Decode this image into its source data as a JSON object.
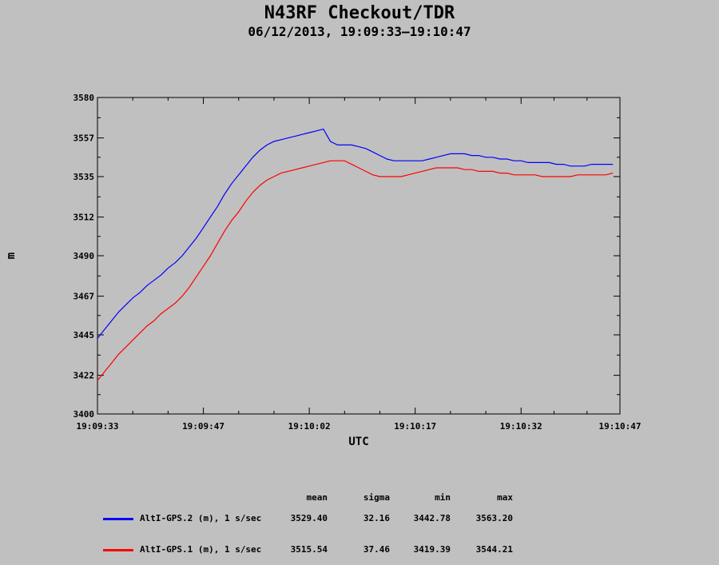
{
  "title": "N43RF Checkout/TDR",
  "subtitle": "06/12/2013, 19:09:33–19:10:47",
  "colors": {
    "background": "#c0c0c0",
    "series1": "#0000ff",
    "series2": "#ff0000"
  },
  "chart_data": {
    "type": "line",
    "title": "N43RF Checkout/TDR",
    "subtitle": "06/12/2013, 19:09:33–19:10:47",
    "xlabel": "UTC",
    "ylabel": "m",
    "x_unit": "seconds after 19:09:33",
    "xlim": [
      0,
      74
    ],
    "ylim": [
      3400,
      3580
    ],
    "x_ticks": [
      0,
      15,
      30,
      45,
      60,
      74
    ],
    "x_tick_labels": [
      "19:09:33",
      "19:09:47",
      "19:10:02",
      "19:10:17",
      "19:10:32",
      "19:10:47"
    ],
    "y_ticks": [
      3400,
      3422,
      3445,
      3467,
      3490,
      3512,
      3535,
      3557,
      3580
    ],
    "grid": false,
    "x": [
      0,
      1,
      2,
      3,
      4,
      5,
      6,
      7,
      8,
      9,
      10,
      11,
      12,
      13,
      14,
      15,
      16,
      17,
      18,
      19,
      20,
      21,
      22,
      23,
      24,
      25,
      26,
      27,
      28,
      29,
      30,
      31,
      32,
      33,
      34,
      35,
      36,
      37,
      38,
      39,
      40,
      41,
      42,
      43,
      44,
      45,
      46,
      47,
      48,
      49,
      50,
      51,
      52,
      53,
      54,
      55,
      56,
      57,
      58,
      59,
      60,
      61,
      62,
      63,
      64,
      65,
      66,
      67,
      68,
      69,
      70,
      71,
      72,
      73
    ],
    "series": [
      {
        "name": "AltI-GPS.2 (m), 1 s/sec",
        "color": "#0000ff",
        "values": [
          3443,
          3448,
          3453,
          3458,
          3462,
          3466,
          3469,
          3473,
          3476,
          3479,
          3483,
          3486,
          3490,
          3495,
          3500,
          3506,
          3512,
          3518,
          3525,
          3531,
          3536,
          3541,
          3546,
          3550,
          3553,
          3555,
          3556,
          3557,
          3558,
          3559,
          3560,
          3561,
          3562,
          3555,
          3553,
          3553,
          3553,
          3552,
          3551,
          3549,
          3547,
          3545,
          3544,
          3544,
          3544,
          3544,
          3544,
          3545,
          3546,
          3547,
          3548,
          3548,
          3548,
          3547,
          3547,
          3546,
          3546,
          3545,
          3545,
          3544,
          3544,
          3543,
          3543,
          3543,
          3543,
          3542,
          3542,
          3541,
          3541,
          3541,
          3542,
          3542,
          3542,
          3542
        ]
      },
      {
        "name": "AltI-GPS.1 (m), 1 s/sec",
        "color": "#ff0000",
        "values": [
          3419,
          3424,
          3429,
          3434,
          3438,
          3442,
          3446,
          3450,
          3453,
          3457,
          3460,
          3463,
          3467,
          3472,
          3478,
          3484,
          3490,
          3497,
          3504,
          3510,
          3515,
          3521,
          3526,
          3530,
          3533,
          3535,
          3537,
          3538,
          3539,
          3540,
          3541,
          3542,
          3543,
          3544,
          3544,
          3544,
          3542,
          3540,
          3538,
          3536,
          3535,
          3535,
          3535,
          3535,
          3536,
          3537,
          3538,
          3539,
          3540,
          3540,
          3540,
          3540,
          3539,
          3539,
          3538,
          3538,
          3538,
          3537,
          3537,
          3536,
          3536,
          3536,
          3536,
          3535,
          3535,
          3535,
          3535,
          3535,
          3536,
          3536,
          3536,
          3536,
          3536,
          3537
        ]
      }
    ],
    "stats": {
      "headers": [
        "mean",
        "sigma",
        "min",
        "max"
      ],
      "rows": [
        {
          "name": "AltI-GPS.2 (m), 1 s/sec",
          "mean": "3529.40",
          "sigma": "32.16",
          "min": "3442.78",
          "max": "3563.20"
        },
        {
          "name": "AltI-GPS.1 (m), 1 s/sec",
          "mean": "3515.54",
          "sigma": "37.46",
          "min": "3419.39",
          "max": "3544.21"
        }
      ]
    }
  }
}
